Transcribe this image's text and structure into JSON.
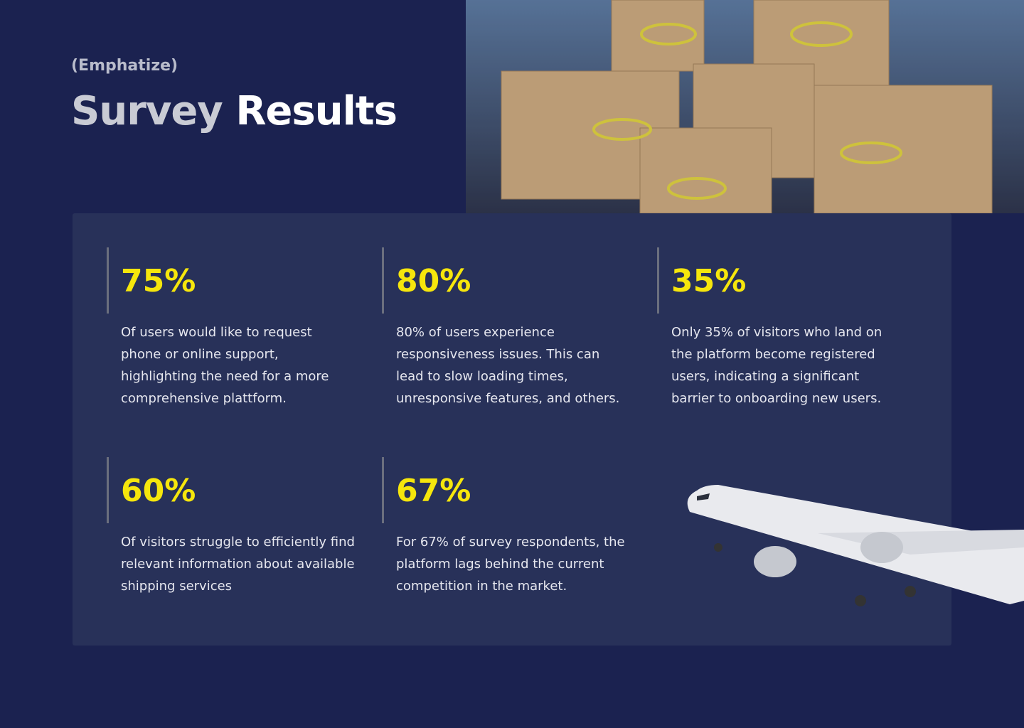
{
  "header": {
    "eyebrow": "(Emphatize)",
    "title_first": "Survey",
    "title_second": "Results"
  },
  "stats": [
    {
      "value": "75%",
      "text": "Of users would like to request phone or online support, highlighting the need for a more comprehensive plattform."
    },
    {
      "value": "80%",
      "text": "80% of users experience responsiveness issues. This can lead to slow loading times, unresponsive features, and others."
    },
    {
      "value": "35%",
      "text": "Only 35% of visitors who land on the platform become registered users, indicating a significant barrier to onboarding new users."
    },
    {
      "value": "60%",
      "text": "Of visitors struggle to efficiently find relevant information about available shipping services"
    },
    {
      "value": "67%",
      "text": "For 67% of survey respondents, the platform lags behind the current competition in the market."
    }
  ]
}
